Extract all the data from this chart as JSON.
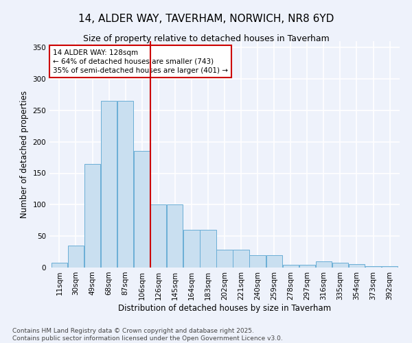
{
  "title": "14, ALDER WAY, TAVERHAM, NORWICH, NR8 6YD",
  "subtitle": "Size of property relative to detached houses in Taverham",
  "xlabel": "Distribution of detached houses by size in Taverham",
  "ylabel": "Number of detached properties",
  "bar_color": "#c9dff0",
  "bar_edge_color": "#6aaed6",
  "background_color": "#eef2fb",
  "grid_color": "#ffffff",
  "categories": [
    "11sqm",
    "30sqm",
    "49sqm",
    "68sqm",
    "87sqm",
    "106sqm",
    "126sqm",
    "145sqm",
    "164sqm",
    "183sqm",
    "202sqm",
    "221sqm",
    "240sqm",
    "259sqm",
    "278sqm",
    "297sqm",
    "316sqm",
    "335sqm",
    "354sqm",
    "373sqm",
    "392sqm"
  ],
  "values": [
    8,
    35,
    165,
    265,
    265,
    185,
    100,
    100,
    60,
    60,
    28,
    28,
    20,
    20,
    4,
    4,
    10,
    8,
    5,
    2,
    2
  ],
  "ylim": [
    0,
    360
  ],
  "yticks": [
    0,
    50,
    100,
    150,
    200,
    250,
    300,
    350
  ],
  "property_line_x": 5.5,
  "property_label": "14 ALDER WAY: 128sqm",
  "annotation_line1": "← 64% of detached houses are smaller (743)",
  "annotation_line2": "35% of semi-detached houses are larger (401) →",
  "annotation_box_color": "#ffffff",
  "annotation_box_edge": "#cc0000",
  "vline_color": "#cc0000",
  "footer_line1": "Contains HM Land Registry data © Crown copyright and database right 2025.",
  "footer_line2": "Contains public sector information licensed under the Open Government Licence v3.0.",
  "title_fontsize": 11,
  "subtitle_fontsize": 9,
  "axis_label_fontsize": 8.5,
  "tick_fontsize": 7.5,
  "annotation_fontsize": 7.5,
  "footer_fontsize": 6.5
}
